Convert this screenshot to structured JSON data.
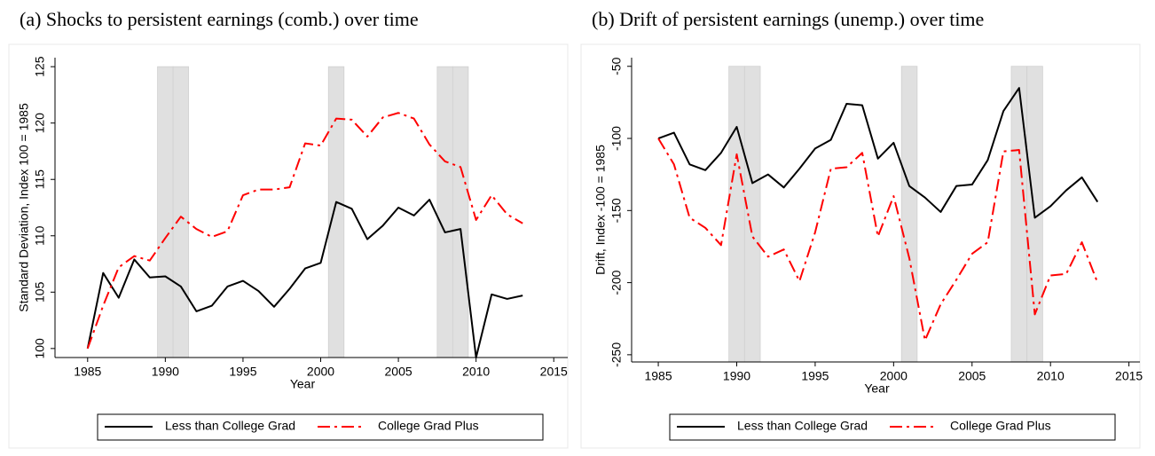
{
  "chart_data": [
    {
      "type": "line",
      "title": "(a) Shocks to persistent earnings (comb.) over time",
      "x_label": "Year",
      "y_label": "Standard Deviation, Index 100 = 1985",
      "x": [
        1985,
        1986,
        1987,
        1988,
        1989,
        1990,
        1991,
        1992,
        1993,
        1994,
        1995,
        1996,
        1997,
        1998,
        1999,
        2000,
        2001,
        2002,
        2003,
        2004,
        2005,
        2006,
        2007,
        2008,
        2009,
        2010,
        2011,
        2012,
        2013
      ],
      "series": [
        {
          "name": "Less than College Grad",
          "color": "#000000",
          "dash": "solid",
          "values": [
            100,
            106.7,
            104.5,
            107.9,
            106.3,
            106.4,
            105.5,
            103.3,
            103.8,
            105.5,
            106.0,
            105.1,
            103.7,
            105.3,
            107.1,
            107.6,
            113.0,
            112.4,
            109.7,
            110.9,
            112.5,
            111.8,
            113.2,
            110.3,
            110.6,
            99.2,
            104.8,
            104.4,
            104.7
          ]
        },
        {
          "name": "College Grad Plus",
          "color": "#ff0000",
          "dash": "dashdot",
          "values": [
            100,
            103.8,
            107.2,
            108.2,
            107.8,
            109.8,
            111.7,
            110.6,
            109.9,
            110.4,
            113.6,
            114.1,
            114.1,
            114.3,
            118.2,
            118.0,
            120.4,
            120.3,
            118.8,
            120.5,
            120.9,
            120.4,
            118.1,
            116.6,
            116.1,
            111.4,
            113.6,
            111.9,
            111.1
          ]
        }
      ],
      "shaded": [
        [
          1989.5,
          1990.5
        ],
        [
          1990.5,
          1991.5
        ],
        [
          2000.5,
          2001.5
        ],
        [
          2007.5,
          2008.5
        ],
        [
          2008.5,
          2009.5
        ]
      ],
      "xlim": [
        1982.9,
        2015.9
      ],
      "xticks": [
        1985,
        1990,
        1995,
        2000,
        2005,
        2010,
        2015
      ],
      "ylim": [
        99.2,
        125.8
      ],
      "yticks": [
        100,
        105,
        110,
        115,
        120,
        125
      ],
      "legend": "bottom"
    },
    {
      "type": "line",
      "title": "(b) Drift of persistent earnings (unemp.) over time",
      "x_label": "Year",
      "y_label": "Drift, Index -100 = 1985",
      "x": [
        1985,
        1986,
        1987,
        1988,
        1989,
        1990,
        1991,
        1992,
        1993,
        1994,
        1995,
        1996,
        1997,
        1998,
        1999,
        2000,
        2001,
        2002,
        2003,
        2004,
        2005,
        2006,
        2007,
        2008,
        2009,
        2010,
        2011,
        2012,
        2013
      ],
      "series": [
        {
          "name": "Less than College Grad",
          "color": "#000000",
          "dash": "solid",
          "values": [
            -100,
            -96,
            -118,
            -122,
            -110,
            -92,
            -131,
            -125,
            -134,
            -121,
            -107,
            -101,
            -76,
            -77,
            -114,
            -103,
            -133,
            -141,
            -151,
            -133,
            -132,
            -115,
            -81,
            -65,
            -155,
            -147,
            -136,
            -127,
            -144
          ]
        },
        {
          "name": "College Grad Plus",
          "color": "#ff0000",
          "dash": "dashdot",
          "values": [
            -100,
            -118,
            -155,
            -162,
            -174,
            -111,
            -168,
            -182,
            -177,
            -199,
            -165,
            -121,
            -120,
            -110,
            -168,
            -140,
            -183,
            -240,
            -215,
            -198,
            -180,
            -172,
            -109,
            -108,
            -222,
            -195,
            -194,
            -172,
            -200
          ]
        }
      ],
      "shaded": [
        [
          1989.5,
          1990.5
        ],
        [
          1990.5,
          1991.5
        ],
        [
          2000.5,
          2001.5
        ],
        [
          2007.5,
          2008.5
        ],
        [
          2008.5,
          2009.5
        ]
      ],
      "xlim": [
        1983.3,
        2015.7
      ],
      "xticks": [
        1985,
        1990,
        1995,
        2000,
        2005,
        2010,
        2015
      ],
      "ylim": [
        -255,
        -44
      ],
      "yticks": [
        -250,
        -200,
        -150,
        -100,
        -50
      ],
      "legend": "bottom"
    }
  ]
}
